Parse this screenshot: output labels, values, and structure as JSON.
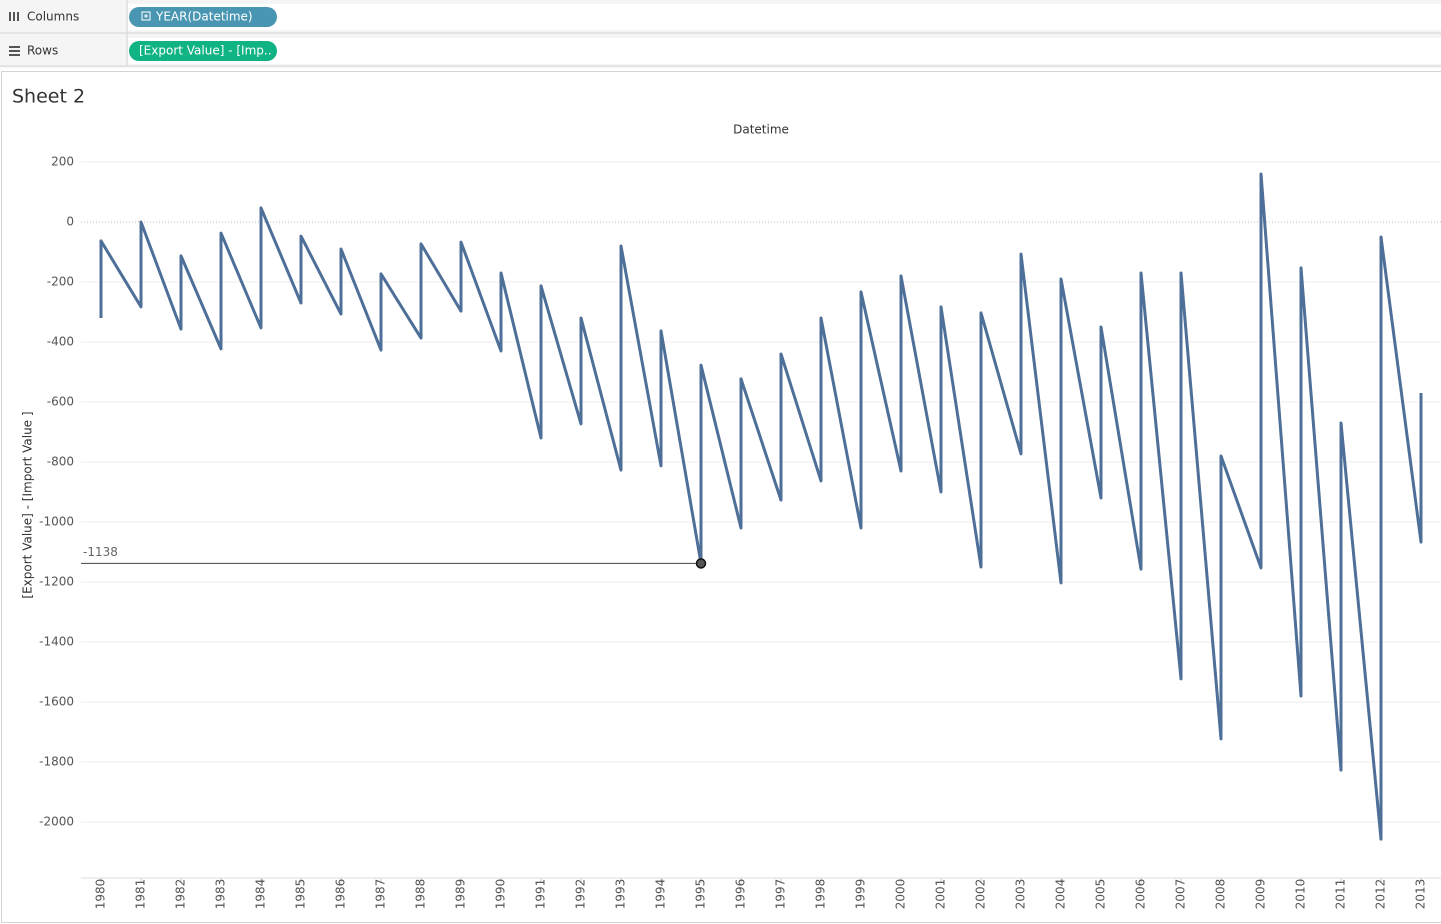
{
  "shelves": {
    "columns_label": "Columns",
    "columns_pill": "YEAR(Datetime)",
    "rows_label": "Rows",
    "rows_pill": "[Export Value] - [Imp.."
  },
  "sheet_title": "Sheet 2",
  "chart_data": {
    "type": "line",
    "x_label": "Datetime",
    "y_label": "[Export Value] - [Import Value ]",
    "x": [
      1980,
      1980,
      1981,
      1981,
      1982,
      1982,
      1983,
      1983,
      1984,
      1984,
      1985,
      1985,
      1986,
      1986,
      1987,
      1987,
      1988,
      1988,
      1989,
      1989,
      1990,
      1990,
      1991,
      1991,
      1992,
      1992,
      1993,
      1993,
      1994,
      1994,
      1995,
      1995,
      1996,
      1996,
      1997,
      1997,
      1998,
      1998,
      1999,
      1999,
      2000,
      2000,
      2001,
      2001,
      2002,
      2002,
      2003,
      2003,
      2004,
      2004,
      2005,
      2005,
      2006,
      2006,
      2007,
      2007,
      2008,
      2008,
      2009,
      2009,
      2010,
      2010,
      2011,
      2011,
      2012,
      2012,
      2013,
      2013
    ],
    "series": [
      {
        "name": "[Export Value] - [Import Value ]",
        "color": "#4e6f98",
        "values": [
          -320,
          -63,
          -283,
          0,
          -357,
          -113,
          -423,
          -37,
          -353,
          47,
          -270,
          -47,
          -307,
          -90,
          -427,
          -173,
          -387,
          -73,
          -297,
          -67,
          -430,
          -170,
          -720,
          -213,
          -673,
          -320,
          -827,
          -80,
          -813,
          -363,
          -1138,
          -477,
          -1020,
          -523,
          -927,
          -440,
          -863,
          -320,
          -1020,
          -233,
          -830,
          -180,
          -900,
          -283,
          -1150,
          -303,
          -773,
          -107,
          -1203,
          -190,
          -920,
          -350,
          -1157,
          -170,
          -1523,
          -170,
          -1723,
          -780,
          -1153,
          160,
          -1580,
          -153,
          -1827,
          -670,
          -2057,
          -50,
          -1067,
          -570
        ]
      }
    ],
    "xlim": [
      1979.5,
      2013.5
    ],
    "xticks": [
      1980,
      1981,
      1982,
      1983,
      1984,
      1985,
      1986,
      1987,
      1988,
      1989,
      1990,
      1991,
      1992,
      1993,
      1994,
      1995,
      1996,
      1997,
      1998,
      1999,
      2000,
      2001,
      2002,
      2003,
      2004,
      2005,
      2006,
      2007,
      2008,
      2009,
      2010,
      2011,
      2012,
      2013
    ],
    "ylim": [
      -2160,
      250
    ],
    "yticks": [
      200,
      0,
      -200,
      -400,
      -600,
      -800,
      -1000,
      -1200,
      -1400,
      -1600,
      -1800,
      -2000
    ],
    "grid": true
  }
}
